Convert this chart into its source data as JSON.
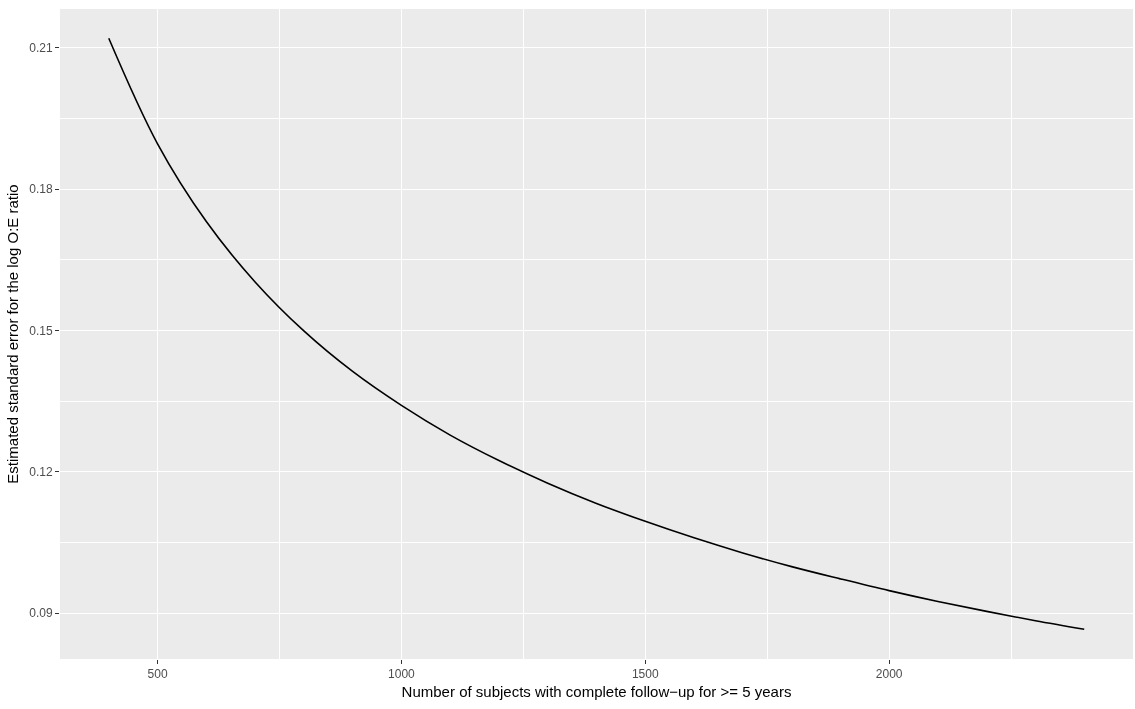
{
  "chart_data": {
    "type": "line",
    "xlabel": "Number of subjects with complete follow−up for >= 5 years",
    "ylabel": "Estimated standard error for the log O:E ratio",
    "x": [
      400,
      500,
      600,
      700,
      800,
      900,
      1000,
      1100,
      1200,
      1300,
      1400,
      1500,
      1600,
      1700,
      1800,
      1900,
      2000,
      2100,
      2200,
      2300,
      2400
    ],
    "series": [
      {
        "color": "#000000",
        "values": [
          0.212,
          0.1896,
          0.1731,
          0.1603,
          0.1499,
          0.1413,
          0.1341,
          0.1278,
          0.1224,
          0.1176,
          0.1133,
          0.1095,
          0.106,
          0.1028,
          0.0999,
          0.0973,
          0.0948,
          0.0925,
          0.0904,
          0.0884,
          0.0866
        ]
      }
    ],
    "xlim": [
      300,
      2500
    ],
    "xticks": [
      500,
      1000,
      1500,
      2000
    ],
    "ylim": [
      0.0803,
      0.2182
    ],
    "yticks": [
      {
        "value": 0.09,
        "label": "0.09"
      },
      {
        "value": 0.12,
        "label": "0.12"
      },
      {
        "value": 0.15,
        "label": "0.15"
      },
      {
        "value": 0.18,
        "label": "0.18"
      },
      {
        "value": 0.21,
        "label": "0.21"
      }
    ],
    "grid": true,
    "line_style": "solid",
    "marker": "none"
  }
}
